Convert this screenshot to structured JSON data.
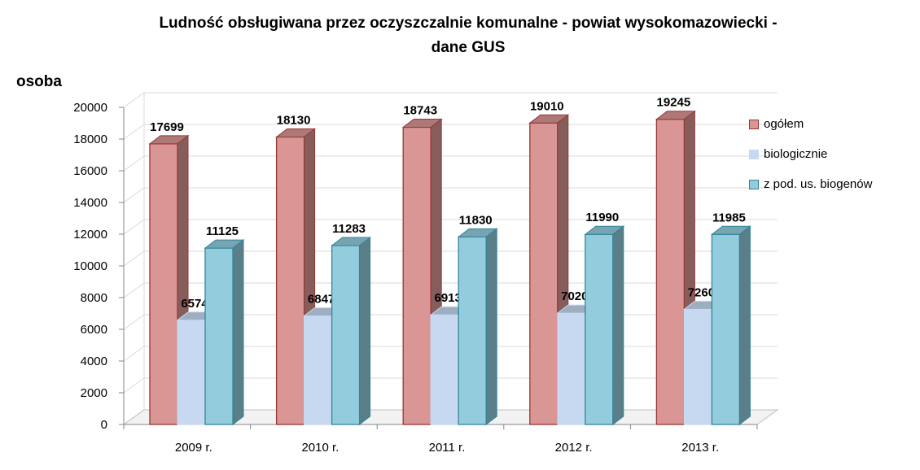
{
  "chart_data": {
    "type": "bar",
    "title_line1": "Ludność obsługiwana przez oczyszczalnie komunalne  - powiat wysokomazowiecki -",
    "title_line2": "dane GUS",
    "ylabel": "osoba",
    "xlabel": "",
    "categories": [
      "2009 r.",
      "2010 r.",
      "2011 r.",
      "2012 r.",
      "2013 r."
    ],
    "ylim": [
      0,
      20000
    ],
    "yticks": [
      0,
      2000,
      4000,
      6000,
      8000,
      10000,
      12000,
      14000,
      16000,
      18000,
      20000
    ],
    "grid": true,
    "legend_position": "right",
    "three_d": true,
    "series": [
      {
        "name": "ogółem",
        "values": [
          17699,
          18130,
          18743,
          19010,
          19245
        ],
        "color": "#d99694",
        "border": "#953735"
      },
      {
        "name": "biologicznie",
        "values": [
          6574,
          6847,
          6913,
          7020,
          7260
        ],
        "color": "#c6d9f1",
        "border": "#c6d9f1"
      },
      {
        "name": "z pod. us. biogenów",
        "values": [
          11125,
          11283,
          11830,
          11990,
          11985
        ],
        "color": "#93cddd",
        "border": "#31859c"
      }
    ]
  }
}
